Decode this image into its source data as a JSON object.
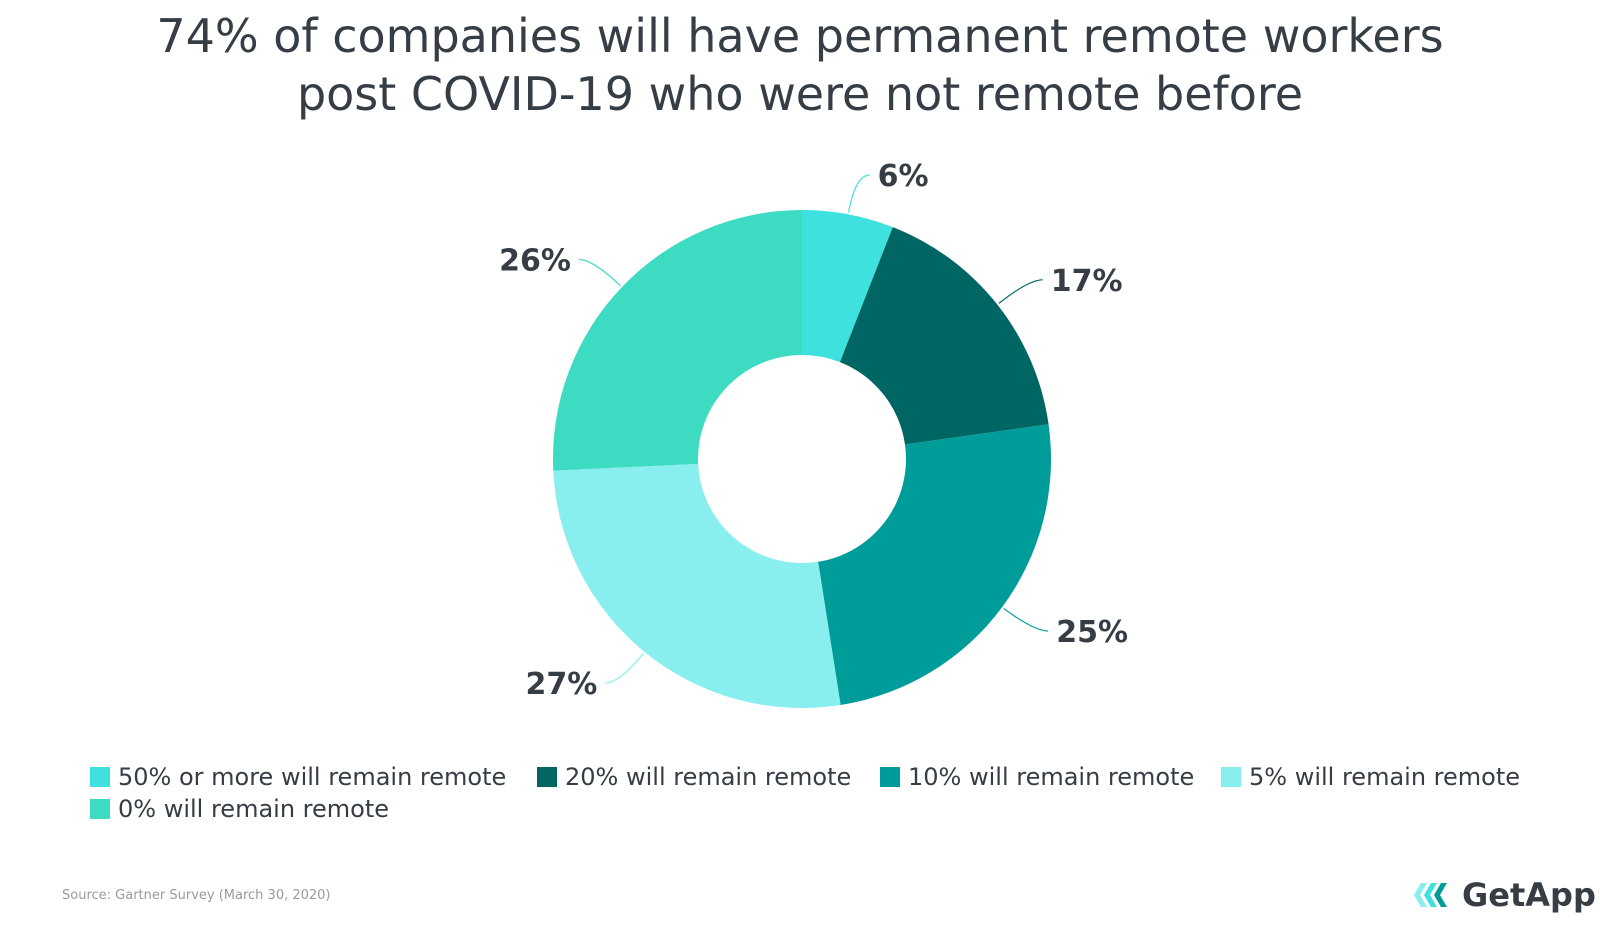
{
  "chart_data": {
    "type": "pie",
    "variant": "donut",
    "title": "74% of companies will have permanent remote workers post COVID-19 who were not remote before",
    "title_lines": [
      "74% of companies will have permanent remote workers",
      "post COVID-19 who were not remote before"
    ],
    "categories": [
      "50% or more will remain remote",
      "20% will remain remote",
      "10% will remain remote",
      "5% will remain remote",
      "0% will remain remote"
    ],
    "values": [
      6,
      17,
      25,
      27,
      26
    ],
    "data_labels": [
      "6%",
      "17%",
      "25%",
      "27%",
      "26%"
    ],
    "colors": [
      "#3fe1df",
      "#006663",
      "#009c99",
      "#88eeee",
      "#3cdbc2"
    ],
    "legend_position": "bottom-left"
  },
  "source": "Source: Gartner Survey (March 30, 2020)",
  "brand": "GetApp"
}
